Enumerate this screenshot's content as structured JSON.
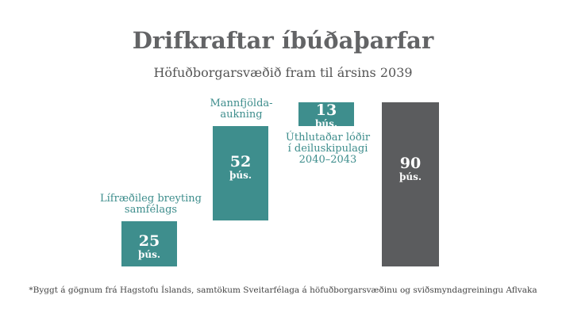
{
  "title": "Drifkraftar íbúðaþarfar",
  "subtitle": "Höfuðborgarsvæðið fram til ársins 2039",
  "colors": {
    "teal": "#3e8e8d",
    "gray": "#5b5c5e",
    "label_teal": "#3d8d8c"
  },
  "chart_data": {
    "type": "bar",
    "subtype": "waterfall",
    "title": "Drifkraftar íbúðaþarfar",
    "subtitle": "Höfuðborgarsvæðið fram til ársins 2039",
    "unit": "þús.",
    "ylim": [
      0,
      90
    ],
    "grid": false,
    "categories": [
      "Lífræðileg breyting samfélags",
      "Mannfjölda-aukning",
      "Úthlutaðar lóðir í deiluskipulagi 2040-2043",
      ""
    ],
    "values": [
      25,
      52,
      13,
      90
    ],
    "bars": [
      {
        "label_lines": [
          "Lífræðileg breyting",
          "samfélags"
        ],
        "value": 25,
        "value_text": "25",
        "unit_text": "þús.",
        "kind": "increase"
      },
      {
        "label_lines": [
          "Mannfjölda-",
          "aukning"
        ],
        "value": 52,
        "value_text": "52",
        "unit_text": "þús.",
        "kind": "increase"
      },
      {
        "label_lines": [
          "Úthlutaðar lóðir",
          "í deiluskipulagi",
          "2040–2043"
        ],
        "value": 13,
        "value_text": "13",
        "unit_text": "þús.",
        "kind": "increase"
      },
      {
        "label_lines": [],
        "value": 90,
        "value_text": "90",
        "unit_text": "þús.",
        "kind": "total"
      }
    ]
  },
  "footnote": "*Byggt á gögnum frá Hagstofu Íslands, samtökum Sveitarfélaga á höfuðborgarsvæðinu og sviðsmyndagreiningu Aflvaka"
}
